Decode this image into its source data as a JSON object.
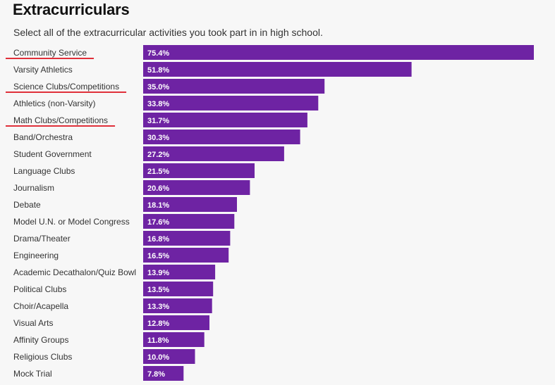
{
  "page": {
    "title": "Extracurriculars",
    "subtitle": "Select all of the extracurricular activities you took part in in high school."
  },
  "colors": {
    "bar": "#6e23a3",
    "underline": "#e0303a",
    "background": "#f7f7f7"
  },
  "chart_data": {
    "type": "bar",
    "orientation": "horizontal",
    "title": "Extracurriculars",
    "subtitle": "Select all of the extracurricular activities you took part in in high school.",
    "xlabel": "",
    "ylabel": "",
    "xlim": [
      0,
      75.4
    ],
    "grid": false,
    "categories": [
      "Community Service",
      "Varsity Athletics",
      "Science Clubs/Competitions",
      "Athletics (non-Varsity)",
      "Math Clubs/Competitions",
      "Band/Orchestra",
      "Student Government",
      "Language Clubs",
      "Journalism",
      "Debate",
      "Model U.N. or Model Congress",
      "Drama/Theater",
      "Engineering",
      "Academic Decathalon/Quiz Bowl",
      "Political Clubs",
      "Choir/Acapella",
      "Visual Arts",
      "Affinity Groups",
      "Religious Clubs",
      "Mock Trial"
    ],
    "values": [
      75.4,
      51.8,
      35.0,
      33.8,
      31.7,
      30.3,
      27.2,
      21.5,
      20.6,
      18.1,
      17.6,
      16.8,
      16.5,
      13.9,
      13.5,
      13.3,
      12.8,
      11.8,
      10.0,
      7.8
    ],
    "value_labels": [
      "75.4%",
      "51.8%",
      "35.0%",
      "33.8%",
      "31.7%",
      "30.3%",
      "27.2%",
      "21.5%",
      "20.6%",
      "18.1%",
      "17.6%",
      "16.8%",
      "16.5%",
      "13.9%",
      "13.5%",
      "13.3%",
      "12.8%",
      "11.8%",
      "10.0%",
      "7.8%"
    ],
    "highlighted_categories": [
      "Community Service",
      "Science Clubs/Competitions",
      "Math Clubs/Competitions"
    ]
  }
}
